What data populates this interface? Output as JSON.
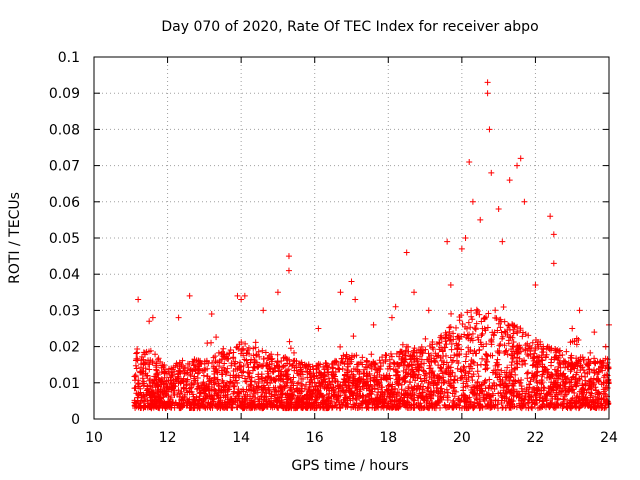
{
  "chart_data": {
    "type": "scatter",
    "title": "Day 070 of 2020, Rate Of TEC Index for receiver abpo",
    "xlabel": "GPS time / hours",
    "ylabel": "ROTI / TECUs",
    "xlim": [
      10,
      24
    ],
    "ylim": [
      0,
      0.1
    ],
    "xticks": [
      "10",
      "12",
      "14",
      "16",
      "18",
      "20",
      "22",
      "24"
    ],
    "yticks": [
      "0",
      "0.01",
      "0.02",
      "0.03",
      "0.04",
      "0.05",
      "0.06",
      "0.07",
      "0.08",
      "0.09",
      "0.1"
    ],
    "grid": true,
    "marker": "+",
    "point_color": "#ff0000",
    "series": [
      {
        "points": [
          [
            11.2,
            0.033
          ],
          [
            11.5,
            0.027
          ],
          [
            11.6,
            0.028
          ],
          [
            12.3,
            0.028
          ],
          [
            12.6,
            0.034
          ],
          [
            13.2,
            0.029
          ],
          [
            13.9,
            0.034
          ],
          [
            14.0,
            0.033
          ],
          [
            14.1,
            0.034
          ],
          [
            14.6,
            0.03
          ],
          [
            15.0,
            0.035
          ],
          [
            15.3,
            0.041
          ],
          [
            15.3,
            0.045
          ],
          [
            16.1,
            0.025
          ],
          [
            16.7,
            0.035
          ],
          [
            17.0,
            0.038
          ],
          [
            17.1,
            0.033
          ],
          [
            17.6,
            0.026
          ],
          [
            18.1,
            0.028
          ],
          [
            18.2,
            0.031
          ],
          [
            18.5,
            0.046
          ],
          [
            18.7,
            0.035
          ],
          [
            19.1,
            0.03
          ],
          [
            19.6,
            0.049
          ],
          [
            19.7,
            0.037
          ],
          [
            20.0,
            0.047
          ],
          [
            20.1,
            0.05
          ],
          [
            20.2,
            0.071
          ],
          [
            20.3,
            0.06
          ],
          [
            20.5,
            0.055
          ],
          [
            20.7,
            0.093
          ],
          [
            20.7,
            0.09
          ],
          [
            20.75,
            0.08
          ],
          [
            20.8,
            0.068
          ],
          [
            21.0,
            0.058
          ],
          [
            21.1,
            0.049
          ],
          [
            21.3,
            0.066
          ],
          [
            21.5,
            0.07
          ],
          [
            21.6,
            0.072
          ],
          [
            21.7,
            0.06
          ],
          [
            22.0,
            0.037
          ],
          [
            22.4,
            0.056
          ],
          [
            22.5,
            0.051
          ],
          [
            22.5,
            0.043
          ],
          [
            23.0,
            0.025
          ],
          [
            23.2,
            0.03
          ],
          [
            23.6,
            0.024
          ],
          [
            24.0,
            0.026
          ]
        ],
        "density_profile": [
          [
            11.1,
            0.018
          ],
          [
            11.5,
            0.02
          ],
          [
            12.0,
            0.014
          ],
          [
            12.5,
            0.017
          ],
          [
            13.0,
            0.016
          ],
          [
            13.5,
            0.019
          ],
          [
            14.0,
            0.021
          ],
          [
            14.5,
            0.02
          ],
          [
            15.0,
            0.018
          ],
          [
            15.5,
            0.016
          ],
          [
            16.0,
            0.015
          ],
          [
            16.5,
            0.016
          ],
          [
            17.0,
            0.019
          ],
          [
            17.5,
            0.016
          ],
          [
            18.0,
            0.018
          ],
          [
            18.5,
            0.02
          ],
          [
            19.0,
            0.02
          ],
          [
            19.5,
            0.024
          ],
          [
            20.0,
            0.029
          ],
          [
            20.5,
            0.031
          ],
          [
            21.0,
            0.028
          ],
          [
            21.5,
            0.026
          ],
          [
            22.0,
            0.022
          ],
          [
            22.5,
            0.02
          ],
          [
            23.0,
            0.018
          ],
          [
            23.5,
            0.017
          ],
          [
            24.0,
            0.017
          ]
        ]
      }
    ]
  }
}
